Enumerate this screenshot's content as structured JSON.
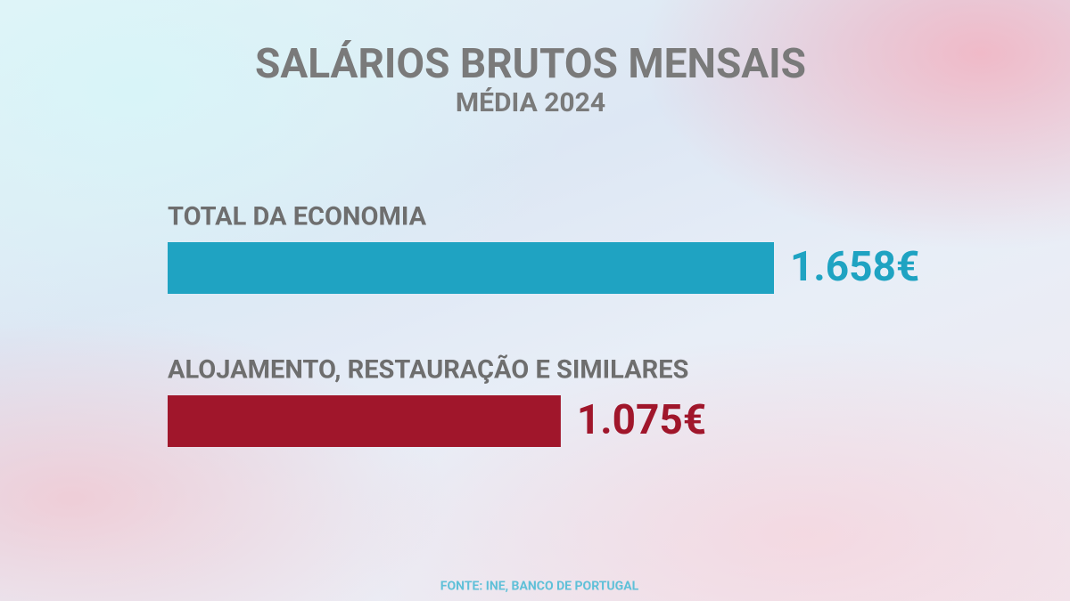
{
  "chart_data": {
    "type": "bar",
    "orientation": "horizontal",
    "title": "SALÁRIOS BRUTOS MENSAIS",
    "subtitle": "MÉDIA 2024",
    "categories": [
      "TOTAL DA ECONOMIA",
      "ALOJAMENTO, RESTAURAÇÃO E SIMILARES"
    ],
    "values": [
      1658,
      1075
    ],
    "value_labels": [
      "1.658€",
      "1.075€"
    ],
    "colors": [
      "#1fa3c2",
      "#a0162b"
    ],
    "source": "FONTE: INE, BANCO DE PORTUGAL"
  }
}
